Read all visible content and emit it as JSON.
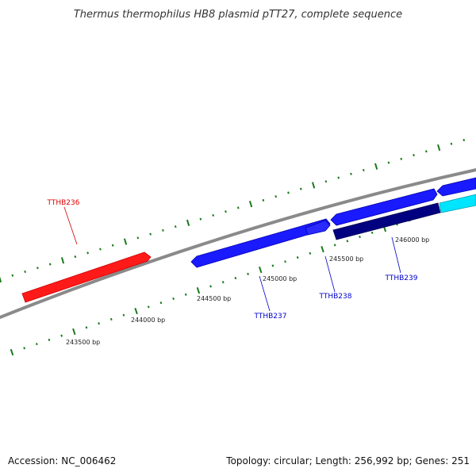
{
  "title": "Thermus thermophilus HB8 plasmid pTT27, complete sequence",
  "footer": {
    "accession": "Accession: NC_006462",
    "summary": "Topology: circular; Length: 256,992 bp; Genes: 251"
  },
  "positions": [
    "243500 bp",
    "244000 bp",
    "244500 bp",
    "245000 bp",
    "245500 bp",
    "246000 bp"
  ],
  "genes": [
    {
      "name": "TTHB236",
      "color": "#ff0000"
    },
    {
      "name": "TTHB237",
      "color": "#0000cc"
    },
    {
      "name": "TTHB238",
      "color": "#0000cc"
    },
    {
      "name": "TTHB239",
      "color": "#0000cc"
    }
  ],
  "colors": {
    "backbone": "#888888",
    "tick": "#1a7a1a",
    "red_feature": "#ff1a1a",
    "blue_feature": "#1a1aff",
    "navy_feature": "#000080",
    "cyan_feature": "#00e5ff"
  }
}
